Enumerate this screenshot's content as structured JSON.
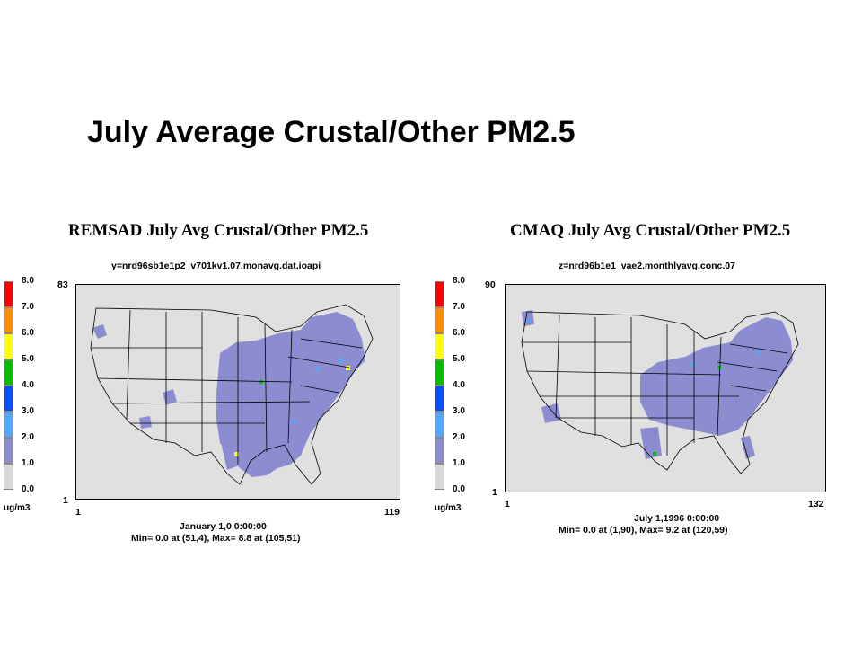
{
  "slide": {
    "title": "July Average Crustal/Other PM2.5"
  },
  "legend": {
    "ticks": [
      "8.0",
      "7.0",
      "6.0",
      "5.0",
      "4.0",
      "3.0",
      "2.0",
      "1.0",
      "0.0"
    ],
    "colors": [
      "#ff0000",
      "#ff8c00",
      "#ffff00",
      "#00c000",
      "#0050ff",
      "#50a8ff",
      "#8c8cd0",
      "#d9d9d9"
    ],
    "unit": "ug/m3"
  },
  "panels": [
    {
      "title": "REMSAD July Avg Crustal/Other PM2.5",
      "file": "y=nrd96sb1e1p2_v701kv1.07.monavg.dat.ioapi",
      "ymax": "83",
      "ymin": "1",
      "xmin": "1",
      "xmax": "119",
      "date": "January 1,0 0:00:00",
      "minmax": "Min=  0.0 at (51,4), Max=  8.8 at (105,51)"
    },
    {
      "title": "CMAQ July Avg Crustal/Other PM2.5",
      "file": "z=nrd96b1e1_vae2.monthlyavg.conc.07",
      "ymax": "90",
      "ymin": "1",
      "xmin": "1",
      "xmax": "132",
      "date": "July 1,1996 0:00:00",
      "minmax": "Min=  0.0 at (1,90), Max=  9.2 at (120,59)"
    }
  ],
  "map_colors": {
    "background": "#e0e0e0",
    "plume": "#8c8cd0",
    "high": "#50a8ff",
    "peak": "#00c000",
    "lines": "#000000"
  }
}
